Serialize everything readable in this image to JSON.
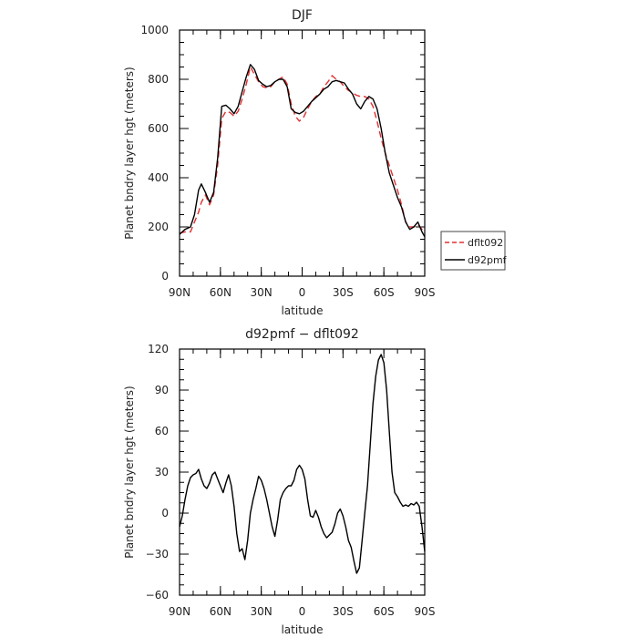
{
  "chart_data": [
    {
      "type": "line",
      "title": "DJF",
      "xlabel": "latitude",
      "ylabel": "Planet bndry layer hgt (meters)",
      "xlim": [
        90,
        -90
      ],
      "ylim": [
        0,
        1000
      ],
      "x_ticks": [
        90,
        60,
        30,
        0,
        -30,
        -60,
        -90
      ],
      "x_tick_labels": [
        "90N",
        "60N",
        "30N",
        "0",
        "30S",
        "60S",
        "90S"
      ],
      "y_ticks": [
        0,
        200,
        400,
        600,
        800,
        1000
      ],
      "y_tick_labels": [
        "0",
        "200",
        "400",
        "600",
        "800",
        "1000"
      ],
      "legend": "right",
      "grid": false,
      "series": [
        {
          "name": "dflt092",
          "color": "#e03030",
          "dash": "dashed",
          "x": [
            90,
            86,
            82,
            79,
            76,
            74,
            71,
            68,
            65,
            62,
            59,
            56,
            53,
            50,
            47,
            44,
            41,
            38,
            35,
            32,
            29,
            26,
            23,
            20,
            17,
            14,
            11,
            8,
            5,
            2,
            -1,
            -4,
            -7,
            -10,
            -13,
            -16,
            -19,
            -22,
            -25,
            -28,
            -31,
            -34,
            -37,
            -40,
            -43,
            -46,
            -49,
            -52,
            -55,
            -58,
            -61,
            -64,
            -67,
            -70,
            -73,
            -76,
            -79,
            -82,
            -85,
            -88,
            -90
          ],
          "y": [
            175,
            180,
            180,
            220,
            260,
            300,
            330,
            290,
            330,
            450,
            640,
            670,
            665,
            650,
            670,
            720,
            780,
            850,
            820,
            790,
            770,
            765,
            770,
            790,
            800,
            810,
            780,
            700,
            650,
            630,
            645,
            680,
            710,
            730,
            740,
            770,
            790,
            815,
            800,
            790,
            770,
            755,
            745,
            735,
            730,
            730,
            720,
            690,
            630,
            560,
            500,
            450,
            400,
            350,
            290,
            220,
            200,
            200,
            210,
            190,
            175
          ]
        },
        {
          "name": "d92pmf",
          "color": "#000000",
          "dash": "solid",
          "x": [
            90,
            86,
            82,
            79,
            76,
            74,
            71,
            68,
            65,
            62,
            59,
            56,
            53,
            50,
            47,
            44,
            41,
            38,
            35,
            32,
            29,
            26,
            23,
            20,
            17,
            14,
            11,
            8,
            5,
            2,
            -1,
            -4,
            -7,
            -10,
            -13,
            -16,
            -19,
            -22,
            -25,
            -28,
            -31,
            -34,
            -37,
            -40,
            -43,
            -46,
            -49,
            -52,
            -55,
            -58,
            -61,
            -64,
            -67,
            -70,
            -73,
            -76,
            -79,
            -82,
            -85,
            -88,
            -90
          ],
          "y": [
            170,
            190,
            200,
            250,
            350,
            375,
            340,
            300,
            340,
            480,
            690,
            695,
            680,
            660,
            690,
            750,
            810,
            860,
            840,
            795,
            780,
            770,
            775,
            790,
            800,
            800,
            770,
            680,
            665,
            660,
            670,
            690,
            710,
            725,
            740,
            760,
            770,
            790,
            795,
            790,
            785,
            760,
            740,
            700,
            680,
            710,
            730,
            720,
            680,
            600,
            500,
            420,
            370,
            320,
            280,
            220,
            190,
            200,
            220,
            180,
            160
          ]
        }
      ]
    },
    {
      "type": "line",
      "title": "d92pmf − dflt092",
      "xlabel": "latitude",
      "ylabel": "Planet bndry layer hgt (meters)",
      "xlim": [
        90,
        -90
      ],
      "ylim": [
        -60,
        120
      ],
      "x_ticks": [
        90,
        60,
        30,
        0,
        -30,
        -60,
        -90
      ],
      "x_tick_labels": [
        "90N",
        "60N",
        "30N",
        "0",
        "30S",
        "60S",
        "90S"
      ],
      "y_ticks": [
        -60,
        -30,
        0,
        30,
        60,
        90,
        120
      ],
      "y_tick_labels": [
        "−60",
        "−30",
        "0",
        "30",
        "60",
        "90",
        "120"
      ],
      "grid": false,
      "series": [
        {
          "color": "#000000",
          "dash": "solid",
          "x": [
            90,
            88,
            86,
            84,
            82,
            80,
            78,
            76,
            74,
            72,
            70,
            68,
            66,
            64,
            62,
            60,
            58,
            56,
            54,
            52,
            50,
            48,
            46,
            44,
            42,
            40,
            38,
            36,
            34,
            32,
            30,
            28,
            26,
            24,
            22,
            20,
            18,
            16,
            14,
            12,
            10,
            8,
            6,
            4,
            2,
            0,
            -2,
            -4,
            -6,
            -8,
            -10,
            -12,
            -14,
            -16,
            -18,
            -20,
            -22,
            -24,
            -26,
            -28,
            -30,
            -32,
            -34,
            -36,
            -38,
            -40,
            -42,
            -44,
            -46,
            -48,
            -50,
            -52,
            -54,
            -56,
            -58,
            -60,
            -62,
            -64,
            -66,
            -68,
            -70,
            -72,
            -74,
            -76,
            -78,
            -80,
            -82,
            -84,
            -86,
            -88,
            -90
          ],
          "y": [
            -10,
            -2,
            10,
            20,
            26,
            28,
            29,
            32,
            25,
            20,
            18,
            22,
            28,
            30,
            25,
            20,
            15,
            22,
            28,
            20,
            5,
            -15,
            -28,
            -26,
            -34,
            -20,
            0,
            10,
            18,
            27,
            24,
            18,
            10,
            0,
            -10,
            -17,
            -5,
            10,
            15,
            18,
            20,
            20,
            24,
            32,
            35,
            32,
            25,
            10,
            -2,
            -3,
            2,
            -3,
            -10,
            -15,
            -18,
            -16,
            -14,
            -8,
            0,
            3,
            -2,
            -10,
            -20,
            -25,
            -35,
            -44,
            -40,
            -20,
            0,
            20,
            50,
            80,
            100,
            112,
            116,
            110,
            90,
            60,
            30,
            15,
            12,
            8,
            5,
            6,
            5,
            7,
            6,
            8,
            5,
            -10,
            -28
          ]
        }
      ]
    }
  ]
}
